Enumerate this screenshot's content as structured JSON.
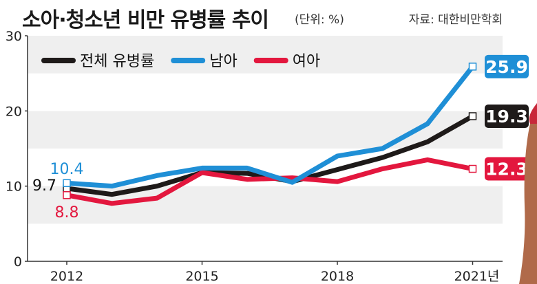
{
  "header": {
    "title": "소아·청소년 비만 유병률 추이",
    "unit": "(단위: %)",
    "source": "자료: 대한비만학회"
  },
  "chart_data": {
    "type": "line",
    "title": "소아·청소년 비만 유병률 추이",
    "unit_note": "(단위: %)",
    "x": [
      2012,
      2013,
      2014,
      2015,
      2016,
      2017,
      2018,
      2019,
      2020,
      2021
    ],
    "x_tick_values": [
      2012,
      2015,
      2018,
      2021
    ],
    "x_tick_labels": [
      "2012",
      "2015",
      "2018",
      "2021년"
    ],
    "ylim": [
      0,
      30
    ],
    "y_ticks": [
      0,
      10,
      20,
      30
    ],
    "grid": "horizontal bands",
    "legend_position": "top-left",
    "series": [
      {
        "name": "전체 유병률",
        "color": "#1e1a19",
        "values": [
          9.7,
          8.9,
          10.0,
          11.8,
          11.7,
          10.6,
          12.2,
          13.8,
          15.9,
          19.3
        ]
      },
      {
        "name": "남아",
        "color": "#1f8fd6",
        "values": [
          10.4,
          10.0,
          11.4,
          12.4,
          12.4,
          10.5,
          14.0,
          15.0,
          18.3,
          25.9
        ]
      },
      {
        "name": "여아",
        "color": "#e3173e",
        "values": [
          8.8,
          7.7,
          8.4,
          11.8,
          10.9,
          11.1,
          10.6,
          12.3,
          13.5,
          12.3
        ]
      }
    ],
    "start_labels": [
      {
        "series": 1,
        "text": "10.4"
      },
      {
        "series": 0,
        "text": "9.7"
      },
      {
        "series": 2,
        "text": "8.8"
      }
    ],
    "end_labels": [
      {
        "series": 1,
        "text": "25.9"
      },
      {
        "series": 0,
        "text": "19.3"
      },
      {
        "series": 2,
        "text": "12.3"
      }
    ]
  }
}
